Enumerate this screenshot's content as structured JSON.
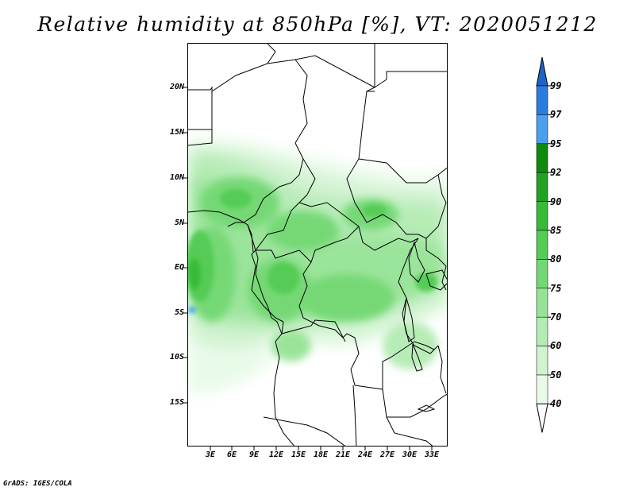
{
  "title": "Relative humidity at 850hPa [%], VT: 2020051212",
  "footer": "GrADS: IGES/COLA",
  "map": {
    "lat_ticks": [
      "20N",
      "15N",
      "10N",
      "5N",
      "EQ",
      "5S",
      "10S",
      "15S"
    ],
    "lon_ticks": [
      "3E",
      "6E",
      "9E",
      "12E",
      "15E",
      "18E",
      "21E",
      "24E",
      "27E",
      "30E",
      "33E"
    ]
  },
  "colorbar": {
    "levels": [
      "99",
      "97",
      "95",
      "92",
      "90",
      "85",
      "80",
      "75",
      "70",
      "60",
      "50",
      "40"
    ],
    "colors": {
      "above_99": "#1e64c8",
      "97_99": "#2a7de0",
      "95_97": "#4aa0ee",
      "92_95": "#0e8a0e",
      "90_92": "#22a222",
      "85_90": "#37bb37",
      "80_85": "#54cc54",
      "75_80": "#73d873",
      "70_75": "#96e396",
      "60_70": "#b4ebb4",
      "50_60": "#d0f3d0",
      "40_50": "#e8fae8",
      "below_40": "#ffffff"
    }
  }
}
